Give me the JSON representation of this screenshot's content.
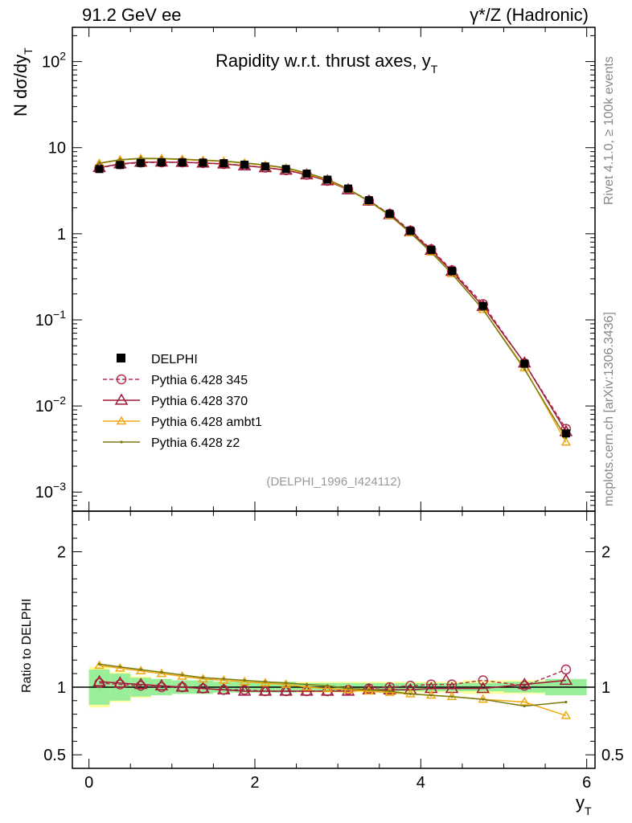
{
  "header": {
    "left": "91.2 GeV ee",
    "right": "γ*/Z (Hadronic)"
  },
  "side": {
    "rivet": "Rivet 4.1.0, ≥ 100k events",
    "mcplots": "mcplots.cern.ch [arXiv:1306.3436]"
  },
  "chart_data": {
    "type": "line",
    "title": "Rapidity w.r.t. thrust axes, y",
    "title_sub": "T",
    "xlabel": "y",
    "xlabel_sub": "T",
    "ylabel": "N  dσ/dy",
    "ylabel_sub": "T",
    "ratio_ylabel": "Ratio to DELPHI",
    "analysis_tag": "(DELPHI_1996_I424112)",
    "xlim": [
      -0.2,
      6.1
    ],
    "ylim_log": [
      0.0006,
      250
    ],
    "ratio_ylim": [
      0.4,
      2.3
    ],
    "x_ticks": [
      0,
      2,
      4,
      6
    ],
    "y_ticks_main": [
      {
        "value": 0.001,
        "base": "10",
        "exp": "−3"
      },
      {
        "value": 0.01,
        "base": "10",
        "exp": "−2"
      },
      {
        "value": 0.1,
        "base": "10",
        "exp": "−1"
      },
      {
        "value": 1,
        "base": "1",
        "exp": ""
      },
      {
        "value": 10,
        "base": "10",
        "exp": ""
      },
      {
        "value": 100,
        "base": "10",
        "exp": "2"
      }
    ],
    "ratio_ticks": [
      {
        "value": 0.5,
        "label": "0.5"
      },
      {
        "value": 1,
        "label": "1"
      },
      {
        "value": 2,
        "label": "2"
      }
    ],
    "x": [
      0.125,
      0.375,
      0.625,
      0.875,
      1.125,
      1.375,
      1.625,
      1.875,
      2.125,
      2.375,
      2.625,
      2.875,
      3.125,
      3.375,
      3.625,
      3.875,
      4.125,
      4.375,
      4.75,
      5.25,
      5.75
    ],
    "bin_edges": [
      0,
      0.25,
      0.5,
      0.75,
      1.0,
      1.25,
      1.5,
      1.75,
      2.0,
      2.25,
      2.5,
      2.75,
      3.0,
      3.25,
      3.5,
      3.75,
      4.0,
      4.25,
      4.5,
      5.0,
      5.5,
      6.0
    ],
    "data": {
      "name": "DELPHI",
      "values": [
        5.65,
        6.3,
        6.65,
        6.75,
        6.75,
        6.7,
        6.6,
        6.35,
        6.05,
        5.65,
        5.0,
        4.25,
        3.35,
        2.45,
        1.7,
        1.08,
        0.65,
        0.37,
        0.145,
        0.031,
        0.0048
      ],
      "band_inner": [
        0.13,
        0.1,
        0.07,
        0.06,
        0.05,
        0.05,
        0.04,
        0.04,
        0.04,
        0.04,
        0.03,
        0.03,
        0.03,
        0.03,
        0.03,
        0.03,
        0.03,
        0.03,
        0.03,
        0.04,
        0.06
      ],
      "band_outer": [
        0.15,
        0.11,
        0.08,
        0.06,
        0.05,
        0.05,
        0.04,
        0.04,
        0.04,
        0.04,
        0.04,
        0.04,
        0.04,
        0.04,
        0.04,
        0.04,
        0.04,
        0.04,
        0.05,
        0.05,
        0.06
      ]
    },
    "series": [
      {
        "name": "Pythia 6.428 345",
        "color": "#b03050",
        "dash": true,
        "marker": "circle",
        "ratio": [
          1.03,
          1.02,
          1.01,
          1.0,
          1.0,
          0.99,
          0.98,
          0.98,
          0.97,
          0.97,
          0.97,
          0.97,
          0.98,
          0.99,
          1.0,
          1.01,
          1.02,
          1.02,
          1.05,
          1.01,
          1.13
        ]
      },
      {
        "name": "Pythia 6.428 370",
        "color": "#a01838",
        "dash": false,
        "marker": "triangle",
        "ratio": [
          1.04,
          1.03,
          1.02,
          1.01,
          1.0,
          0.99,
          0.98,
          0.97,
          0.97,
          0.97,
          0.97,
          0.97,
          0.97,
          0.98,
          0.98,
          0.98,
          0.99,
          0.99,
          0.99,
          1.02,
          1.05
        ]
      },
      {
        "name": "Pythia 6.428 ambt1",
        "color": "#f0a810",
        "dash": false,
        "marker": "triangle-small",
        "ratio": [
          1.16,
          1.14,
          1.12,
          1.1,
          1.08,
          1.06,
          1.05,
          1.04,
          1.03,
          1.02,
          1.0,
          0.99,
          0.98,
          0.97,
          0.96,
          0.95,
          0.94,
          0.93,
          0.91,
          0.89,
          0.79
        ]
      },
      {
        "name": "Pythia 6.428 z2",
        "color": "#7a7a10",
        "dash": false,
        "marker": "dot",
        "ratio": [
          1.17,
          1.15,
          1.13,
          1.11,
          1.09,
          1.07,
          1.06,
          1.05,
          1.04,
          1.03,
          1.02,
          1.01,
          0.99,
          0.98,
          0.97,
          0.95,
          0.94,
          0.93,
          0.91,
          0.86,
          0.89
        ]
      }
    ],
    "legend_position": "bottom-left"
  }
}
